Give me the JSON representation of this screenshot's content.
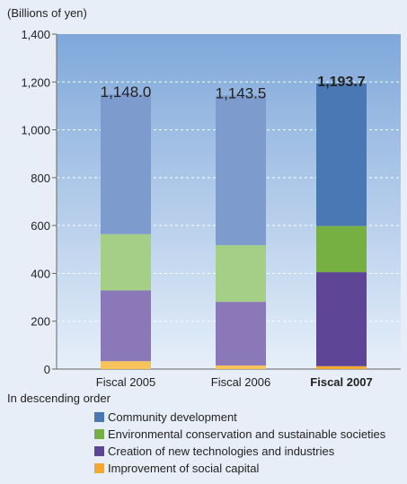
{
  "chart_data": {
    "type": "bar",
    "stacked": true,
    "unit_label": "(Billions of yen)",
    "ylim": [
      0,
      1400
    ],
    "yticks": [
      0,
      200,
      400,
      600,
      800,
      1000,
      1200,
      1400
    ],
    "ytick_labels": [
      "0",
      "200",
      "400",
      "600",
      "800",
      "1,000",
      "1,200",
      "1,400"
    ],
    "categories": [
      "Fiscal 2005",
      "Fiscal 2006",
      "Fiscal 2007"
    ],
    "highlighted_category": "Fiscal 2007",
    "totals": [
      1148.0,
      1143.5,
      1193.7
    ],
    "total_labels": [
      "1,148.0",
      "1,143.5",
      "1,193.7"
    ],
    "series": [
      {
        "name": "Improvement of social capital",
        "values": [
          33,
          15,
          12
        ]
      },
      {
        "name": "Creation of new technologies and industries",
        "values": [
          296,
          266,
          393
        ]
      },
      {
        "name": "Environmental conservation and sustainable societies",
        "values": [
          235,
          237,
          193
        ]
      },
      {
        "name": "Community development",
        "values": [
          584,
          625.5,
          595.7
        ]
      }
    ],
    "grid": true,
    "legend_title": "In descending order",
    "legend_order": [
      3,
      2,
      1,
      0
    ],
    "legend_position": "bottom",
    "colors": {
      "plot_top": "#7fa8da",
      "plot_bottom": "#e6eff9",
      "normal": [
        "#f7c35a",
        "#8a78b9",
        "#a5cf86",
        "#7d9bcc"
      ],
      "highlight": [
        "#f4a92e",
        "#5e4596",
        "#76b043",
        "#4a78b5"
      ]
    }
  }
}
